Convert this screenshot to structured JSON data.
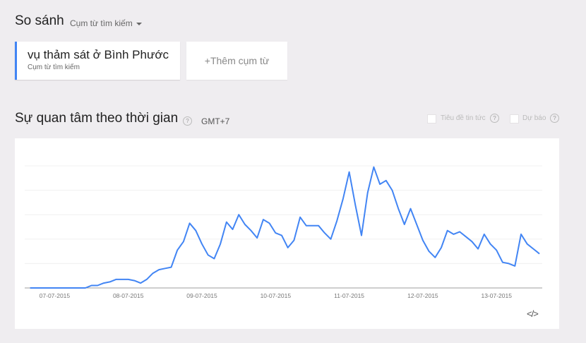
{
  "compare": {
    "title": "So sánh",
    "dropdown_label": "Cụm từ tìm kiếm",
    "terms": [
      {
        "label": "vụ thảm sát ở Bình Phước",
        "sublabel": "Cụm từ tìm kiếm",
        "color": "#4285f4"
      }
    ],
    "add_label": "+Thêm cụm từ"
  },
  "interest": {
    "title": "Sự quan tâm theo thời gian",
    "help": "?",
    "timezone": "GMT+7",
    "options": [
      {
        "label": "Tiêu đề tin tức",
        "checked": false,
        "help": "?"
      },
      {
        "label": "Dự báo",
        "checked": false,
        "help": "?"
      }
    ],
    "embed_label": "</>"
  },
  "chart_data": {
    "type": "line",
    "title": "",
    "xlabel": "",
    "ylabel": "",
    "ylim": [
      0,
      100
    ],
    "grid": true,
    "x_tick_labels": [
      "07-07-2015",
      "08-07-2015",
      "09-07-2015",
      "10-07-2015",
      "11-07-2015",
      "12-07-2015",
      "13-07-2015"
    ],
    "x_ticks": [
      "2015-07-07",
      "2015-07-08",
      "2015-07-09",
      "2015-07-10",
      "2015-07-11",
      "2015-07-12",
      "2015-07-13"
    ],
    "x": [
      "2015-07-06 16:00",
      "2015-07-06 18:00",
      "2015-07-06 20:00",
      "2015-07-06 22:00",
      "2015-07-07 00:00",
      "2015-07-07 02:00",
      "2015-07-07 04:00",
      "2015-07-07 06:00",
      "2015-07-07 08:00",
      "2015-07-07 10:00",
      "2015-07-07 12:00",
      "2015-07-07 14:00",
      "2015-07-07 16:00",
      "2015-07-07 18:00",
      "2015-07-07 20:00",
      "2015-07-07 22:00",
      "2015-07-08 00:00",
      "2015-07-08 02:00",
      "2015-07-08 04:00",
      "2015-07-08 06:00",
      "2015-07-08 08:00",
      "2015-07-08 10:00",
      "2015-07-08 12:00",
      "2015-07-08 14:00",
      "2015-07-08 16:00",
      "2015-07-08 18:00",
      "2015-07-08 20:00",
      "2015-07-08 22:00",
      "2015-07-09 00:00",
      "2015-07-09 02:00",
      "2015-07-09 04:00",
      "2015-07-09 06:00",
      "2015-07-09 08:00",
      "2015-07-09 10:00",
      "2015-07-09 12:00",
      "2015-07-09 14:00",
      "2015-07-09 16:00",
      "2015-07-09 18:00",
      "2015-07-09 20:00",
      "2015-07-09 22:00",
      "2015-07-10 00:00",
      "2015-07-10 02:00",
      "2015-07-10 04:00",
      "2015-07-10 06:00",
      "2015-07-10 08:00",
      "2015-07-10 10:00",
      "2015-07-10 12:00",
      "2015-07-10 14:00",
      "2015-07-10 16:00",
      "2015-07-10 18:00",
      "2015-07-10 20:00",
      "2015-07-10 22:00",
      "2015-07-11 00:00",
      "2015-07-11 02:00",
      "2015-07-11 04:00",
      "2015-07-11 06:00",
      "2015-07-11 08:00",
      "2015-07-11 10:00",
      "2015-07-11 12:00",
      "2015-07-11 14:00",
      "2015-07-11 16:00",
      "2015-07-11 18:00",
      "2015-07-11 20:00",
      "2015-07-11 22:00",
      "2015-07-12 00:00",
      "2015-07-12 02:00",
      "2015-07-12 04:00",
      "2015-07-12 06:00",
      "2015-07-12 08:00",
      "2015-07-12 10:00",
      "2015-07-12 12:00",
      "2015-07-12 14:00",
      "2015-07-12 16:00",
      "2015-07-12 18:00",
      "2015-07-12 20:00",
      "2015-07-12 22:00",
      "2015-07-13 00:00",
      "2015-07-13 02:00",
      "2015-07-13 04:00",
      "2015-07-13 06:00",
      "2015-07-13 08:00",
      "2015-07-13 10:00",
      "2015-07-13 12:00",
      "2015-07-13 14:00"
    ],
    "series": [
      {
        "color": "#4285f4",
        "values": [
          0,
          0,
          0,
          0,
          0,
          0,
          0,
          0,
          0,
          0,
          2,
          2,
          4,
          5,
          7,
          7,
          7,
          6,
          4,
          7,
          12,
          15,
          16,
          17,
          31,
          38,
          53,
          47,
          36,
          27,
          24,
          36,
          54,
          48,
          60,
          52,
          47,
          41,
          56,
          53,
          45,
          43,
          33,
          39,
          58,
          51,
          51,
          51,
          45,
          40,
          55,
          73,
          95,
          68,
          43,
          78,
          99,
          85,
          88,
          80,
          65,
          52,
          65,
          52,
          39,
          30,
          25,
          33,
          47,
          44,
          46,
          42,
          38,
          32,
          44,
          36,
          31,
          21,
          20,
          18,
          44,
          36,
          32,
          28
        ]
      }
    ]
  }
}
